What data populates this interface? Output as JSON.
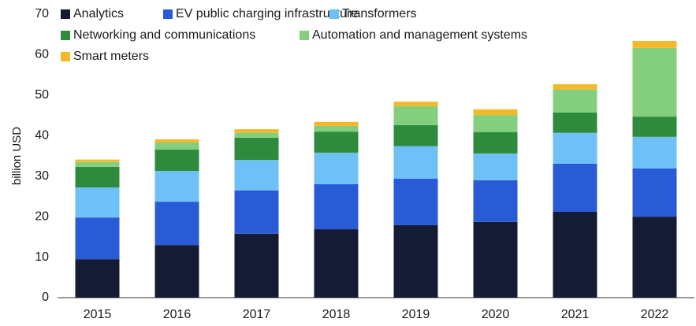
{
  "chart_data": {
    "type": "stacked_bar",
    "y_label": "billion USD",
    "categories": [
      "2015",
      "2016",
      "2017",
      "2018",
      "2019",
      "2020",
      "2021",
      "2022"
    ],
    "series": [
      {
        "name": "Analytics",
        "color": "#141b34",
        "values": [
          9.5,
          13.0,
          15.8,
          16.9,
          17.9,
          18.7,
          21.2,
          20.0
        ]
      },
      {
        "name": "EV public charging infrastructure",
        "color": "#2a5bd7",
        "values": [
          10.3,
          10.7,
          10.7,
          11.1,
          11.5,
          10.3,
          11.9,
          11.9
        ]
      },
      {
        "name": "Transformers",
        "color": "#6ec1f7",
        "values": [
          7.4,
          7.6,
          7.5,
          7.8,
          8.0,
          6.6,
          7.6,
          7.8
        ]
      },
      {
        "name": "Networking and communications",
        "color": "#2e8b3e",
        "values": [
          5.1,
          5.3,
          5.5,
          5.2,
          5.2,
          5.3,
          5.0,
          5.0
        ]
      },
      {
        "name": "Automation and management systems",
        "color": "#84cf7e",
        "values": [
          1.2,
          1.7,
          1.2,
          1.4,
          4.7,
          4.2,
          5.7,
          17.0
        ]
      },
      {
        "name": "Smart meters",
        "color": "#f5b82a",
        "values": [
          0.6,
          0.8,
          0.9,
          1.0,
          1.1,
          1.4,
          1.3,
          1.7
        ]
      }
    ],
    "ylim": [
      0,
      70
    ],
    "yticks": [
      0,
      10,
      20,
      30,
      40,
      50,
      60,
      70
    ],
    "grid": false
  }
}
